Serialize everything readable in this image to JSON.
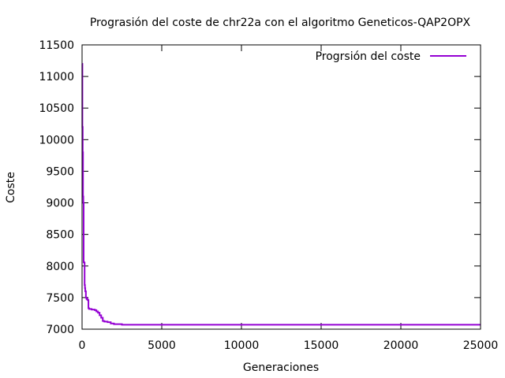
{
  "chart_data": {
    "type": "line",
    "title": "Prograsión del coste de chr22a con el algoritmo Geneticos-QAP2OPX",
    "xlabel": "Generaciones",
    "ylabel": "Coste",
    "xlim": [
      0,
      25000
    ],
    "ylim": [
      7000,
      11500
    ],
    "x_ticks": [
      0,
      5000,
      10000,
      15000,
      20000,
      25000
    ],
    "y_ticks": [
      7000,
      7500,
      8000,
      8500,
      9000,
      9500,
      10000,
      10500,
      11000,
      11500
    ],
    "grid": false,
    "legend_position": "top-right",
    "series": [
      {
        "name": "Progrsión del coste",
        "color": "#9400d3",
        "x": [
          0,
          20,
          40,
          60,
          80,
          100,
          120,
          140,
          160,
          180,
          200,
          240,
          280,
          320,
          360,
          400,
          450,
          500,
          600,
          700,
          800,
          900,
          1000,
          1100,
          1200,
          1300,
          1400,
          1600,
          1800,
          2000,
          2200,
          2500,
          25000
        ],
        "y": [
          11200,
          10200,
          9800,
          9100,
          9000,
          8060,
          8060,
          8050,
          7700,
          7650,
          7600,
          7500,
          7480,
          7470,
          7460,
          7330,
          7320,
          7320,
          7310,
          7310,
          7300,
          7280,
          7260,
          7220,
          7180,
          7130,
          7120,
          7110,
          7090,
          7080,
          7080,
          7070,
          7070
        ]
      }
    ]
  }
}
